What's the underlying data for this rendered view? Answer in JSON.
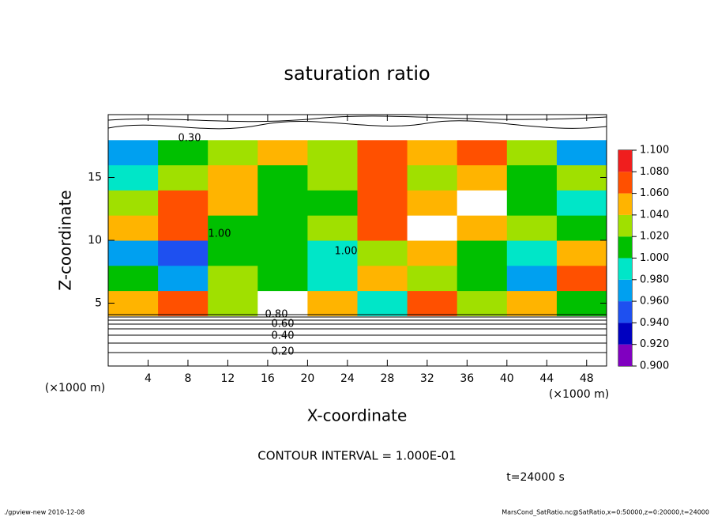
{
  "chart_data": {
    "type": "heatmap",
    "title": "saturation ratio",
    "x_label": "X-coordinate",
    "y_label": "Z-coordinate",
    "x_unit": "(×1000 m)",
    "y_unit": "(×1000 m)",
    "xlim": [
      0,
      50
    ],
    "ylim": [
      0,
      20
    ],
    "xticks": [
      4,
      8,
      12,
      16,
      20,
      24,
      28,
      32,
      36,
      40,
      44,
      48
    ],
    "yticks": [
      5,
      10,
      15
    ],
    "z": [
      [
        0.3,
        0.3,
        0.3,
        0.3,
        0.3,
        0.3,
        0.3,
        0.3,
        0.3,
        0.3
      ],
      [
        0.7,
        0.7,
        0.7,
        0.7,
        0.7,
        0.7,
        0.7,
        0.7,
        0.7,
        0.7
      ],
      [
        1.04,
        1.06,
        1.02,
        1.12,
        1.04,
        0.98,
        1.06,
        1.02,
        1.04,
        1.0
      ],
      [
        1.0,
        0.96,
        1.02,
        1.0,
        0.98,
        1.04,
        1.02,
        1.0,
        0.96,
        1.06
      ],
      [
        0.96,
        0.94,
        1.0,
        1.0,
        0.98,
        1.02,
        1.04,
        1.0,
        0.98,
        1.04
      ],
      [
        1.04,
        1.06,
        1.0,
        1.0,
        1.02,
        1.06,
        1.12,
        1.04,
        1.02,
        1.0
      ],
      [
        1.02,
        1.06,
        1.04,
        1.0,
        1.0,
        1.06,
        1.04,
        1.12,
        1.0,
        0.98
      ],
      [
        0.98,
        1.02,
        1.04,
        1.0,
        1.02,
        1.06,
        1.02,
        1.04,
        1.0,
        1.02
      ],
      [
        0.96,
        1.0,
        1.02,
        1.04,
        1.02,
        1.06,
        1.04,
        1.06,
        1.02,
        0.96
      ],
      [
        0.5,
        0.5,
        0.5,
        0.5,
        0.5,
        0.5,
        0.5,
        0.5,
        0.5,
        0.5
      ]
    ],
    "colorbar_ticks": [
      {
        "value": 0.9,
        "label": "0.900"
      },
      {
        "value": 0.92,
        "label": "0.920"
      },
      {
        "value": 0.94,
        "label": "0.940"
      },
      {
        "value": 0.96,
        "label": "0.960"
      },
      {
        "value": 0.98,
        "label": "0.980"
      },
      {
        "value": 1.0,
        "label": "1.000"
      },
      {
        "value": 1.02,
        "label": "1.020"
      },
      {
        "value": 1.04,
        "label": "1.040"
      },
      {
        "value": 1.06,
        "label": "1.060"
      },
      {
        "value": 1.08,
        "label": "1.080"
      },
      {
        "value": 1.1,
        "label": "1.100"
      }
    ],
    "colors": [
      "#8000c0",
      "#0000c0",
      "#1e50f0",
      "#00a0f0",
      "#00e6c8",
      "#00c000",
      "#a0e000",
      "#ffb400",
      "#ff5000",
      "#f01e1e"
    ],
    "contour_labels": [
      "0.20",
      "0.40",
      "0.60",
      "0.80",
      "1.00",
      "1.00",
      "0.30"
    ],
    "contour_interval": "CONTOUR INTERVAL = 1.000E-01",
    "time": "t=24000 s",
    "footer_left": "./gpview-new  2010-12-08",
    "footer_right": "MarsCond_SatRatio.nc@SatRatio,x=0:50000,z=0:20000,t=24000"
  }
}
